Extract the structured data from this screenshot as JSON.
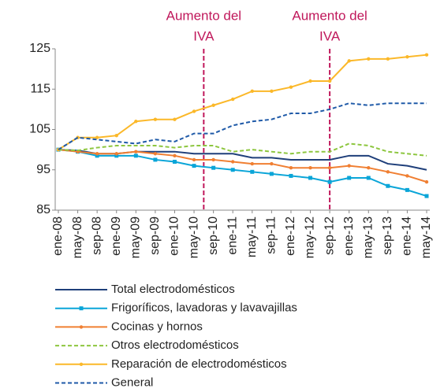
{
  "chart_data": {
    "type": "line",
    "categories": [
      "ene-08",
      "may-08",
      "sep-08",
      "ene-09",
      "may-09",
      "sep-09",
      "ene-10",
      "may-10",
      "sep-10",
      "ene-11",
      "may-11",
      "sep-11",
      "ene-12",
      "may-12",
      "sep-12",
      "ene-13",
      "may-13",
      "sep-13",
      "ene-14",
      "may-14"
    ],
    "series": [
      {
        "name": "Total electrodomésticos",
        "color": "#1f3f7a",
        "style": "solid",
        "values": [
          100,
          99.8,
          99,
          99,
          99.5,
          99.5,
          99.5,
          99,
          99,
          99,
          98,
          98,
          97.5,
          97.5,
          97.5,
          98.5,
          98.5,
          96.5,
          96,
          95
        ]
      },
      {
        "name": "Frigoríficos, lavadoras y lavavajillas",
        "color": "#0aa5d8",
        "style": "solid",
        "marker": "square",
        "values": [
          100,
          99.5,
          98.5,
          98.5,
          98.5,
          97.5,
          97,
          96,
          95.5,
          95,
          94.5,
          94,
          93.5,
          93,
          92,
          93,
          93,
          91,
          90,
          88.5
        ]
      },
      {
        "name": "Cocinas y hornos",
        "color": "#f07f32",
        "style": "solid",
        "marker": "circle",
        "values": [
          100,
          99.5,
          99,
          99,
          99.5,
          99,
          98.5,
          97.5,
          97.5,
          97,
          96.5,
          96.5,
          95.5,
          95.5,
          95.5,
          96,
          95.5,
          94.5,
          93.5,
          92
        ]
      },
      {
        "name": "Otros electrodomésticos",
        "color": "#8dc63f",
        "style": "dashed",
        "values": [
          100,
          99.8,
          100.5,
          101,
          101,
          101,
          100.5,
          101,
          101,
          99.5,
          100,
          99.5,
          99,
          99.5,
          99.5,
          101.5,
          101,
          99.5,
          99,
          98.5
        ]
      },
      {
        "name": "Reparación de electrodomésticos",
        "color": "#fbb829",
        "style": "solid",
        "marker": "circle",
        "values": [
          100,
          103,
          103,
          103.5,
          107,
          107.5,
          107.5,
          109.5,
          111,
          112.5,
          114.5,
          114.5,
          115.5,
          117,
          117,
          122,
          122.5,
          122.5,
          123,
          123.5
        ]
      },
      {
        "name": "General",
        "color": "#1f5aa8",
        "style": "dashed",
        "values": [
          100,
          103,
          102.5,
          102,
          101.5,
          102.5,
          102,
          104,
          104,
          106,
          107,
          107.5,
          109,
          109,
          110,
          111.5,
          111,
          111.5,
          111.5,
          111.5
        ]
      }
    ],
    "ylim": [
      85,
      125
    ],
    "yticks": [
      85,
      95,
      105,
      115,
      125
    ],
    "annotations": [
      {
        "lines": [
          "Aumento del",
          "IVA"
        ],
        "x": 7.5,
        "color": "#c0185b"
      },
      {
        "lines": [
          "Aumento del",
          "IVA"
        ],
        "x": 14,
        "color": "#c0185b"
      }
    ],
    "legend": "bottom"
  }
}
